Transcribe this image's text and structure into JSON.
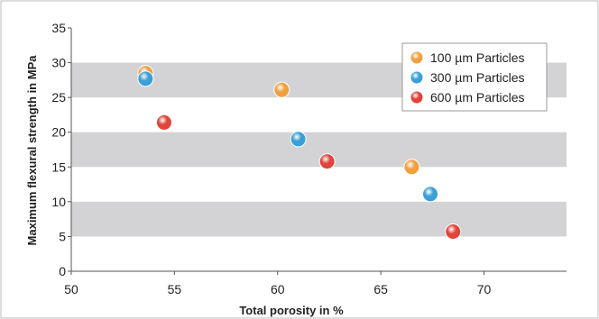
{
  "chart_data": {
    "type": "scatter",
    "xlabel": "Total porosity in %",
    "ylabel": "Maximum flexural strength in MPa",
    "xlim": [
      50,
      74
    ],
    "ylim": [
      0,
      35
    ],
    "x_ticks": [
      "50",
      "55",
      "60",
      "65",
      "70"
    ],
    "y_ticks": [
      "0",
      "5",
      "10",
      "15",
      "20",
      "25",
      "30",
      "35"
    ],
    "grid": "alternating horizontal bands",
    "legend_position": "top-right",
    "series": [
      {
        "name": "100 µm Particles",
        "color": "#f0a040",
        "points": [
          {
            "x": 53.6,
            "y": 28.5
          },
          {
            "x": 60.2,
            "y": 26.1
          },
          {
            "x": 66.5,
            "y": 15.0
          }
        ]
      },
      {
        "name": "300 µm Particles",
        "color": "#3aa0d8",
        "points": [
          {
            "x": 53.6,
            "y": 27.7
          },
          {
            "x": 61.0,
            "y": 19.0
          },
          {
            "x": 67.4,
            "y": 11.1
          }
        ]
      },
      {
        "name": "600 µm Particles",
        "color": "#e0443a",
        "points": [
          {
            "x": 54.5,
            "y": 21.4
          },
          {
            "x": 62.4,
            "y": 15.8
          },
          {
            "x": 68.5,
            "y": 5.7
          }
        ]
      }
    ]
  }
}
